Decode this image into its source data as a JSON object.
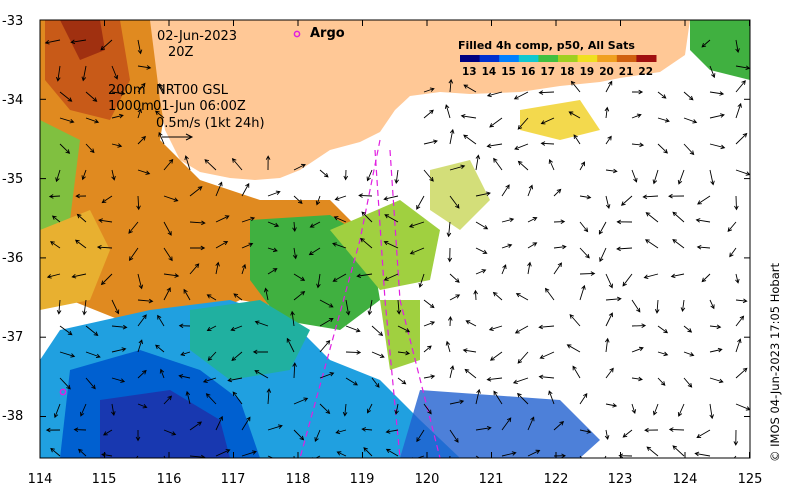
{
  "map": {
    "date": "02-Jun-2023",
    "time": "20Z",
    "legend_argo_label": "Argo",
    "depth_line1": "200m",
    "depth_line2": "1000m",
    "product_line1": "NRT00 GSL",
    "product_line2": "01-Jun 06:00Z",
    "scale_label": "0.5m/s (1kt 24h)",
    "colorbar_title": "Filled 4h comp, p50, All Sats",
    "colorbar_ticks": [
      "13",
      "14",
      "15",
      "16",
      "17",
      "18",
      "19",
      "20",
      "21",
      "22"
    ],
    "colorbar_colors": [
      "#000080",
      "#0030d0",
      "#0080ff",
      "#10c8d0",
      "#40c040",
      "#a0d020",
      "#f0e020",
      "#f0a020",
      "#d06010",
      "#a01010"
    ],
    "y_ticks": [
      "-33",
      "-34",
      "-35",
      "-36",
      "-37",
      "-38"
    ],
    "x_ticks": [
      "114",
      "115",
      "116",
      "117",
      "118",
      "119",
      "120",
      "121",
      "122",
      "123",
      "124",
      "125"
    ],
    "credit": "© IMOS 04-Jun-2023 17:05 Hobart",
    "land_color": "#ffc896",
    "argo_color": "#e020e0"
  }
}
